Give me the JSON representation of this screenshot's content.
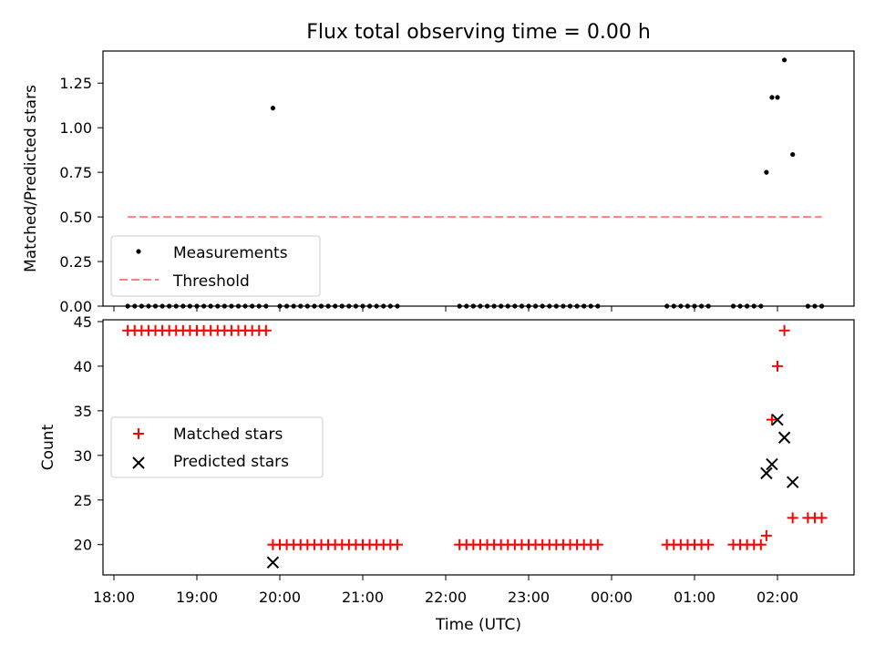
{
  "title": "Flux total observing time = 0.00 h",
  "colors": {
    "threshold": "#ff8080",
    "matched": "#ff0000",
    "predicted": "#000000",
    "measure": "#000000"
  },
  "chart_data": [
    {
      "type": "scatter",
      "ylabel": "Matched/Predicted stars",
      "ylim": [
        0,
        1.43
      ],
      "yticks": [
        0.0,
        0.25,
        0.5,
        0.75,
        1.0,
        1.25
      ],
      "ytick_labels": [
        "0.00",
        "0.25",
        "0.50",
        "0.75",
        "1.00",
        "1.25"
      ],
      "legend_placement": "lower-left",
      "legend": [
        "Measurements",
        "Threshold"
      ],
      "threshold": {
        "y": 0.5,
        "x_from": "18:10",
        "x_to": "02:32"
      },
      "series": [
        {
          "name": "Measurements",
          "points": [
            [
              "18:10",
              0
            ],
            [
              "18:15",
              0
            ],
            [
              "18:20",
              0
            ],
            [
              "18:25",
              0
            ],
            [
              "18:30",
              0
            ],
            [
              "18:35",
              0
            ],
            [
              "18:40",
              0
            ],
            [
              "18:45",
              0
            ],
            [
              "18:50",
              0
            ],
            [
              "18:55",
              0
            ],
            [
              "19:00",
              0
            ],
            [
              "19:05",
              0
            ],
            [
              "19:10",
              0
            ],
            [
              "19:15",
              0
            ],
            [
              "19:20",
              0
            ],
            [
              "19:25",
              0
            ],
            [
              "19:30",
              0
            ],
            [
              "19:35",
              0
            ],
            [
              "19:40",
              0
            ],
            [
              "19:45",
              0
            ],
            [
              "19:50",
              0
            ],
            [
              "19:55",
              1.11
            ],
            [
              "20:00",
              0
            ],
            [
              "20:05",
              0
            ],
            [
              "20:10",
              0
            ],
            [
              "20:15",
              0
            ],
            [
              "20:20",
              0
            ],
            [
              "20:25",
              0
            ],
            [
              "20:30",
              0
            ],
            [
              "20:35",
              0
            ],
            [
              "20:40",
              0
            ],
            [
              "20:45",
              0
            ],
            [
              "20:50",
              0
            ],
            [
              "20:55",
              0
            ],
            [
              "21:00",
              0
            ],
            [
              "21:05",
              0
            ],
            [
              "21:10",
              0
            ],
            [
              "21:15",
              0
            ],
            [
              "21:20",
              0
            ],
            [
              "21:25",
              0
            ],
            [
              "22:10",
              0
            ],
            [
              "22:15",
              0
            ],
            [
              "22:20",
              0
            ],
            [
              "22:25",
              0
            ],
            [
              "22:30",
              0
            ],
            [
              "22:35",
              0
            ],
            [
              "22:40",
              0
            ],
            [
              "22:45",
              0
            ],
            [
              "22:50",
              0
            ],
            [
              "22:55",
              0
            ],
            [
              "23:00",
              0
            ],
            [
              "23:05",
              0
            ],
            [
              "23:10",
              0
            ],
            [
              "23:15",
              0
            ],
            [
              "23:20",
              0
            ],
            [
              "23:25",
              0
            ],
            [
              "23:30",
              0
            ],
            [
              "23:35",
              0
            ],
            [
              "23:40",
              0
            ],
            [
              "23:45",
              0
            ],
            [
              "23:50",
              0
            ],
            [
              "00:40",
              0
            ],
            [
              "00:45",
              0
            ],
            [
              "00:50",
              0
            ],
            [
              "00:55",
              0
            ],
            [
              "01:00",
              0
            ],
            [
              "01:05",
              0
            ],
            [
              "01:10",
              0
            ],
            [
              "01:28",
              0
            ],
            [
              "01:33",
              0
            ],
            [
              "01:38",
              0
            ],
            [
              "01:43",
              0
            ],
            [
              "01:48",
              0
            ],
            [
              "01:52",
              0.75
            ],
            [
              "01:56",
              1.17
            ],
            [
              "02:00",
              1.17
            ],
            [
              "02:05",
              1.38
            ],
            [
              "02:11",
              0.85
            ],
            [
              "02:22",
              0
            ],
            [
              "02:27",
              0
            ],
            [
              "02:32",
              0
            ]
          ]
        }
      ]
    },
    {
      "type": "scatter",
      "xlabel": "Time (UTC)",
      "ylabel": "Count",
      "ylim": [
        16.6,
        45.2
      ],
      "yticks": [
        20,
        25,
        30,
        35,
        40,
        45
      ],
      "ytick_labels": [
        "20",
        "25",
        "30",
        "35",
        "40",
        "45"
      ],
      "xticks": [
        "18:00",
        "19:00",
        "20:00",
        "21:00",
        "22:00",
        "23:00",
        "00:00",
        "01:00",
        "02:00"
      ],
      "legend_placement": "center-left",
      "legend": [
        "Matched stars",
        "Predicted stars"
      ],
      "series": [
        {
          "name": "Matched stars",
          "points": [
            [
              "18:10",
              44
            ],
            [
              "18:15",
              44
            ],
            [
              "18:20",
              44
            ],
            [
              "18:25",
              44
            ],
            [
              "18:30",
              44
            ],
            [
              "18:35",
              44
            ],
            [
              "18:40",
              44
            ],
            [
              "18:45",
              44
            ],
            [
              "18:50",
              44
            ],
            [
              "18:55",
              44
            ],
            [
              "19:00",
              44
            ],
            [
              "19:05",
              44
            ],
            [
              "19:10",
              44
            ],
            [
              "19:15",
              44
            ],
            [
              "19:20",
              44
            ],
            [
              "19:25",
              44
            ],
            [
              "19:30",
              44
            ],
            [
              "19:35",
              44
            ],
            [
              "19:40",
              44
            ],
            [
              "19:45",
              44
            ],
            [
              "19:50",
              44
            ],
            [
              "19:55",
              20
            ],
            [
              "20:00",
              20
            ],
            [
              "20:05",
              20
            ],
            [
              "20:10",
              20
            ],
            [
              "20:15",
              20
            ],
            [
              "20:20",
              20
            ],
            [
              "20:25",
              20
            ],
            [
              "20:30",
              20
            ],
            [
              "20:35",
              20
            ],
            [
              "20:40",
              20
            ],
            [
              "20:45",
              20
            ],
            [
              "20:50",
              20
            ],
            [
              "20:55",
              20
            ],
            [
              "21:00",
              20
            ],
            [
              "21:05",
              20
            ],
            [
              "21:10",
              20
            ],
            [
              "21:15",
              20
            ],
            [
              "21:20",
              20
            ],
            [
              "21:25",
              20
            ],
            [
              "22:10",
              20
            ],
            [
              "22:15",
              20
            ],
            [
              "22:20",
              20
            ],
            [
              "22:25",
              20
            ],
            [
              "22:30",
              20
            ],
            [
              "22:35",
              20
            ],
            [
              "22:40",
              20
            ],
            [
              "22:45",
              20
            ],
            [
              "22:50",
              20
            ],
            [
              "22:55",
              20
            ],
            [
              "23:00",
              20
            ],
            [
              "23:05",
              20
            ],
            [
              "23:10",
              20
            ],
            [
              "23:15",
              20
            ],
            [
              "23:20",
              20
            ],
            [
              "23:25",
              20
            ],
            [
              "23:30",
              20
            ],
            [
              "23:35",
              20
            ],
            [
              "23:40",
              20
            ],
            [
              "23:45",
              20
            ],
            [
              "23:50",
              20
            ],
            [
              "00:40",
              20
            ],
            [
              "00:45",
              20
            ],
            [
              "00:50",
              20
            ],
            [
              "00:55",
              20
            ],
            [
              "01:00",
              20
            ],
            [
              "01:05",
              20
            ],
            [
              "01:10",
              20
            ],
            [
              "01:28",
              20
            ],
            [
              "01:33",
              20
            ],
            [
              "01:38",
              20
            ],
            [
              "01:43",
              20
            ],
            [
              "01:48",
              20
            ],
            [
              "01:52",
              21
            ],
            [
              "01:56",
              34
            ],
            [
              "02:00",
              40
            ],
            [
              "02:05",
              44
            ],
            [
              "02:11",
              23
            ],
            [
              "02:22",
              23
            ],
            [
              "02:27",
              23
            ],
            [
              "02:32",
              23
            ]
          ]
        },
        {
          "name": "Predicted stars",
          "points": [
            [
              "19:55",
              18
            ],
            [
              "01:52",
              28
            ],
            [
              "01:56",
              29
            ],
            [
              "02:00",
              34
            ],
            [
              "02:05",
              32
            ],
            [
              "02:11",
              27
            ]
          ]
        }
      ]
    }
  ]
}
